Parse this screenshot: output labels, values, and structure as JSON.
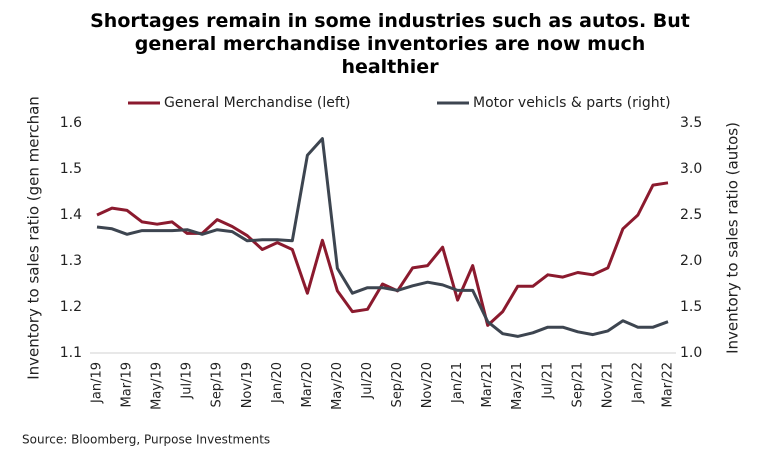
{
  "chart_data": {
    "type": "line",
    "title": "Shortages remain in some industries such as autos.  But general merchandise inventories are now much healthier",
    "source": "Source: Bloomberg, Purpose Investments",
    "ylabel": "Inventory to sales ratio (gen merchan",
    "y2label": "Inventory to sales ratio (autos)",
    "categories": [
      "Jan/19",
      null,
      "Mar/19",
      null,
      "May/19",
      null,
      "Jul/19",
      null,
      "Sep/19",
      null,
      "Nov/19",
      null,
      "Jan/20",
      null,
      "Mar/20",
      null,
      "May/20",
      null,
      "Jul/20",
      null,
      "Sep/20",
      null,
      "Nov/20",
      null,
      "Jan/21",
      null,
      "Mar/21",
      null,
      "May/21",
      null,
      "Jul/21",
      null,
      "Sep/21",
      null,
      "Nov/21",
      null,
      "Jan/22",
      null,
      "Mar/22"
    ],
    "series": [
      {
        "name": "General Merchandise (left)",
        "color": "#8b1a2e",
        "axis": "y",
        "values": [
          1.4,
          1.415,
          1.41,
          1.385,
          1.38,
          1.385,
          1.36,
          1.36,
          1.39,
          1.375,
          1.355,
          1.325,
          1.34,
          1.325,
          1.23,
          1.345,
          1.235,
          1.19,
          1.195,
          1.25,
          1.235,
          1.285,
          1.29,
          1.33,
          1.215,
          1.29,
          1.16,
          1.19,
          1.245,
          1.245,
          1.27,
          1.265,
          1.275,
          1.27,
          1.285,
          1.37,
          1.4,
          1.465,
          1.47
        ]
      },
      {
        "name": "Motor vehicls & parts (right)",
        "color": "#3d4550",
        "axis": "y2",
        "values": [
          2.37,
          2.35,
          2.29,
          2.33,
          2.33,
          2.33,
          2.34,
          2.29,
          2.34,
          2.32,
          2.22,
          2.23,
          2.23,
          2.22,
          3.15,
          3.33,
          1.92,
          1.65,
          1.71,
          1.71,
          1.68,
          1.73,
          1.77,
          1.74,
          1.68,
          1.68,
          1.34,
          1.21,
          1.18,
          1.22,
          1.28,
          1.28,
          1.23,
          1.2,
          1.24,
          1.35,
          1.28,
          1.28,
          1.34
        ]
      }
    ],
    "ylim": [
      1.1,
      1.6
    ],
    "yticks": [
      1.1,
      1.2,
      1.3,
      1.4,
      1.5,
      1.6
    ],
    "y2lim": [
      1,
      3.5
    ],
    "y2ticks": [
      {
        "value": 1,
        "label": "1.0"
      },
      1.5,
      {
        "value": 2,
        "label": "2.0"
      },
      2.5,
      {
        "value": 3,
        "label": "3.0"
      },
      3.5
    ],
    "grid": false
  }
}
